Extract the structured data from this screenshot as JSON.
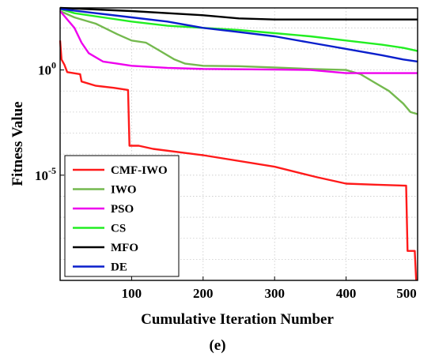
{
  "chart_data": {
    "type": "line",
    "panel_label": "(e)",
    "xlabel": "Cumulative Iteration Number",
    "ylabel": "Fitness Value",
    "xlim": [
      0,
      500
    ],
    "ylim_log10": [
      -10,
      2.95
    ],
    "yscale": "log",
    "grid": "dotted",
    "legend_position": "bottom-left",
    "x_ticks": [
      {
        "value": 100,
        "label": "100"
      },
      {
        "value": 200,
        "label": "200"
      },
      {
        "value": 300,
        "label": "300"
      },
      {
        "value": 400,
        "label": "400"
      },
      {
        "value": 500,
        "label": "500"
      }
    ],
    "y_ticks": [
      {
        "exp": 0,
        "base": "10",
        "sup": "0"
      },
      {
        "exp": -5,
        "base": "10",
        "sup": "-5"
      }
    ],
    "series": [
      {
        "name": "CMF-IWO",
        "color": "#ff1a1a",
        "log10_points": [
          [
            0,
            1.4
          ],
          [
            2,
            0.5
          ],
          [
            6,
            0.25
          ],
          [
            10,
            -0.1
          ],
          [
            28,
            -0.2
          ],
          [
            30,
            -0.55
          ],
          [
            50,
            -0.75
          ],
          [
            75,
            -0.85
          ],
          [
            95,
            -0.95
          ],
          [
            97,
            -3.6
          ],
          [
            110,
            -3.6
          ],
          [
            130,
            -3.75
          ],
          [
            200,
            -4.05
          ],
          [
            300,
            -4.6
          ],
          [
            360,
            -5.1
          ],
          [
            400,
            -5.4
          ],
          [
            440,
            -5.45
          ],
          [
            484,
            -5.5
          ],
          [
            486,
            -8.6
          ],
          [
            496,
            -8.6
          ],
          [
            498,
            -10
          ]
        ]
      },
      {
        "name": "IWO",
        "color": "#74b94e",
        "log10_points": [
          [
            0,
            2.8
          ],
          [
            20,
            2.5
          ],
          [
            50,
            2.2
          ],
          [
            80,
            1.7
          ],
          [
            100,
            1.4
          ],
          [
            120,
            1.3
          ],
          [
            140,
            0.9
          ],
          [
            160,
            0.5
          ],
          [
            175,
            0.3
          ],
          [
            200,
            0.2
          ],
          [
            250,
            0.18
          ],
          [
            300,
            0.12
          ],
          [
            350,
            0.05
          ],
          [
            400,
            0
          ],
          [
            420,
            -0.2
          ],
          [
            440,
            -0.6
          ],
          [
            460,
            -1.0
          ],
          [
            480,
            -1.6
          ],
          [
            490,
            -2.0
          ],
          [
            500,
            -2.1
          ]
        ]
      },
      {
        "name": "PSO",
        "color": "#ee00ee",
        "log10_points": [
          [
            0,
            2.8
          ],
          [
            20,
            2.0
          ],
          [
            30,
            1.3
          ],
          [
            40,
            0.8
          ],
          [
            60,
            0.4
          ],
          [
            80,
            0.3
          ],
          [
            100,
            0.2
          ],
          [
            150,
            0.1
          ],
          [
            200,
            0.05
          ],
          [
            300,
            0.02
          ],
          [
            350,
            0
          ],
          [
            400,
            -0.15
          ],
          [
            500,
            -0.15
          ]
        ]
      },
      {
        "name": "CS",
        "color": "#22ee22",
        "log10_points": [
          [
            0,
            2.9
          ],
          [
            20,
            2.7
          ],
          [
            60,
            2.5
          ],
          [
            100,
            2.3
          ],
          [
            150,
            2.1
          ],
          [
            200,
            2.0
          ],
          [
            250,
            1.9
          ],
          [
            300,
            1.75
          ],
          [
            350,
            1.6
          ],
          [
            400,
            1.4
          ],
          [
            450,
            1.2
          ],
          [
            480,
            1.05
          ],
          [
            500,
            0.9
          ]
        ]
      },
      {
        "name": "MFO",
        "color": "#000000",
        "log10_points": [
          [
            0,
            2.95
          ],
          [
            100,
            2.8
          ],
          [
            200,
            2.6
          ],
          [
            250,
            2.45
          ],
          [
            300,
            2.4
          ],
          [
            400,
            2.4
          ],
          [
            500,
            2.4
          ]
        ]
      },
      {
        "name": "DE",
        "color": "#0a1fcc",
        "log10_points": [
          [
            0,
            2.9
          ],
          [
            50,
            2.7
          ],
          [
            100,
            2.5
          ],
          [
            150,
            2.3
          ],
          [
            200,
            2.0
          ],
          [
            250,
            1.8
          ],
          [
            300,
            1.6
          ],
          [
            350,
            1.3
          ],
          [
            400,
            1.0
          ],
          [
            450,
            0.7
          ],
          [
            480,
            0.5
          ],
          [
            500,
            0.4
          ]
        ]
      }
    ]
  }
}
